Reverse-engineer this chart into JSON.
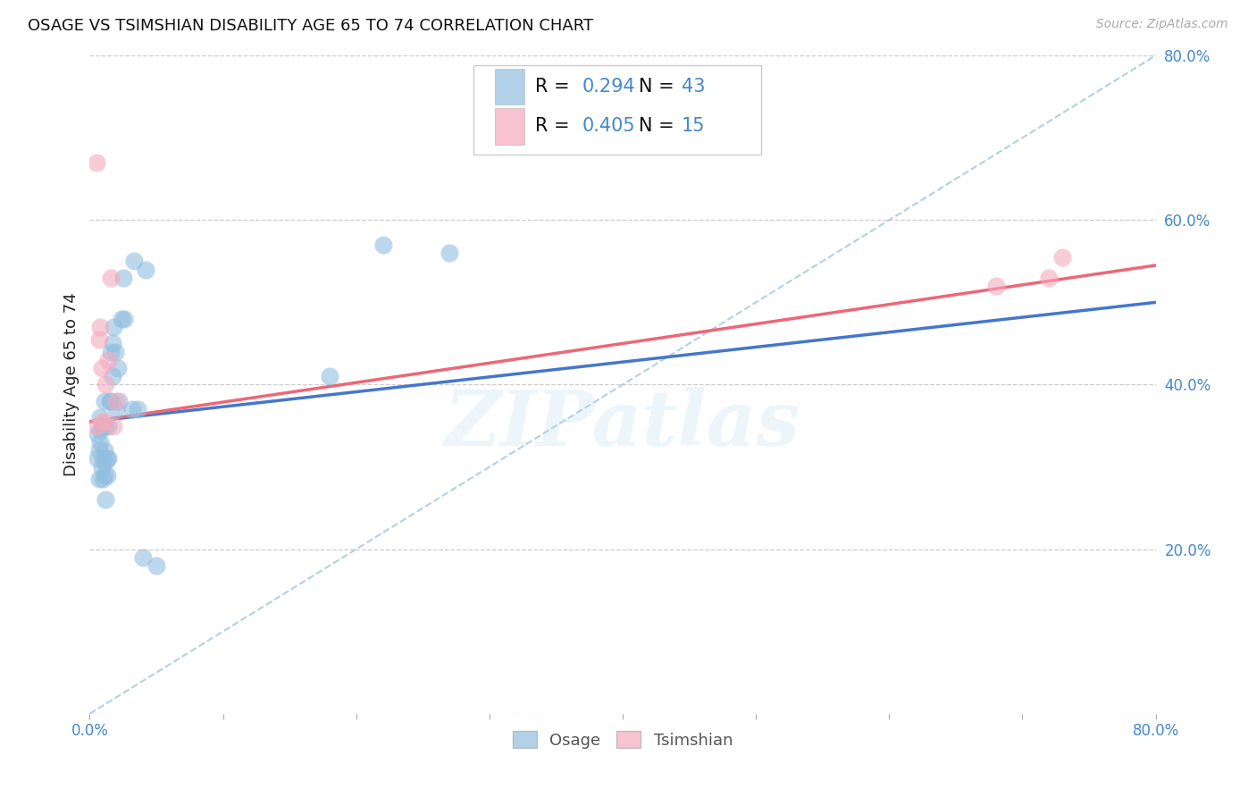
{
  "title": "OSAGE VS TSIMSHIAN DISABILITY AGE 65 TO 74 CORRELATION CHART",
  "source": "Source: ZipAtlas.com",
  "ylabel": "Disability Age 65 to 74",
  "xlim": [
    0.0,
    0.8
  ],
  "ylim": [
    0.0,
    0.8
  ],
  "xtick_vals": [
    0.0,
    0.1,
    0.2,
    0.3,
    0.4,
    0.5,
    0.6,
    0.7,
    0.8
  ],
  "xtick_labels_show": [
    "0.0%",
    "",
    "",
    "",
    "",
    "",
    "",
    "",
    "80.0%"
  ],
  "ytick_vals": [
    0.0,
    0.2,
    0.4,
    0.6,
    0.8
  ],
  "ytick_labels_show": [
    "",
    "20.0%",
    "40.0%",
    "60.0%",
    "80.0%"
  ],
  "osage_color": "#92BEE0",
  "tsimshian_color": "#F4AABC",
  "osage_line_color": "#4477CC",
  "tsimshian_line_color": "#EE6677",
  "legend_r_osage": "R = 0.294",
  "legend_n_osage": "N = 43",
  "legend_r_tsimshian": "R = 0.405",
  "legend_n_tsimshian": "N = 15",
  "watermark": "ZIPatlas",
  "background_color": "#ffffff",
  "grid_color": "#cccccc",
  "axis_label_color": "#4488CC",
  "title_color": "#111111",
  "osage_x": [
    0.006,
    0.006,
    0.007,
    0.007,
    0.008,
    0.008,
    0.008,
    0.009,
    0.009,
    0.01,
    0.01,
    0.011,
    0.011,
    0.011,
    0.011,
    0.012,
    0.012,
    0.013,
    0.013,
    0.014,
    0.014,
    0.015,
    0.016,
    0.016,
    0.017,
    0.017,
    0.018,
    0.019,
    0.02,
    0.021,
    0.022,
    0.024,
    0.025,
    0.026,
    0.032,
    0.033,
    0.036,
    0.04,
    0.042,
    0.05,
    0.18,
    0.22,
    0.27
  ],
  "osage_y": [
    0.31,
    0.34,
    0.285,
    0.32,
    0.33,
    0.345,
    0.36,
    0.3,
    0.35,
    0.285,
    0.31,
    0.29,
    0.305,
    0.32,
    0.38,
    0.26,
    0.35,
    0.29,
    0.31,
    0.31,
    0.35,
    0.38,
    0.38,
    0.44,
    0.41,
    0.45,
    0.47,
    0.44,
    0.37,
    0.42,
    0.38,
    0.48,
    0.53,
    0.48,
    0.37,
    0.55,
    0.37,
    0.19,
    0.54,
    0.18,
    0.41,
    0.57,
    0.56
  ],
  "tsimshian_x": [
    0.005,
    0.006,
    0.007,
    0.008,
    0.009,
    0.009,
    0.011,
    0.012,
    0.014,
    0.016,
    0.018,
    0.02,
    0.68,
    0.72,
    0.73
  ],
  "tsimshian_y": [
    0.67,
    0.35,
    0.455,
    0.47,
    0.355,
    0.42,
    0.355,
    0.4,
    0.43,
    0.53,
    0.35,
    0.38,
    0.52,
    0.53,
    0.555
  ],
  "osage_line_x0": 0.0,
  "osage_line_x1": 0.8,
  "osage_line_y0": 0.355,
  "osage_line_y1": 0.5,
  "tsimshian_line_x0": 0.0,
  "tsimshian_line_x1": 0.8,
  "tsimshian_line_y0": 0.355,
  "tsimshian_line_y1": 0.545,
  "dashed_line_x": [
    0.0,
    0.8
  ],
  "dashed_line_y": [
    0.0,
    0.8
  ],
  "dashed_color": "#AACCDD",
  "legend_text_color_r": "#000000",
  "legend_text_color_n": "#4488CC"
}
